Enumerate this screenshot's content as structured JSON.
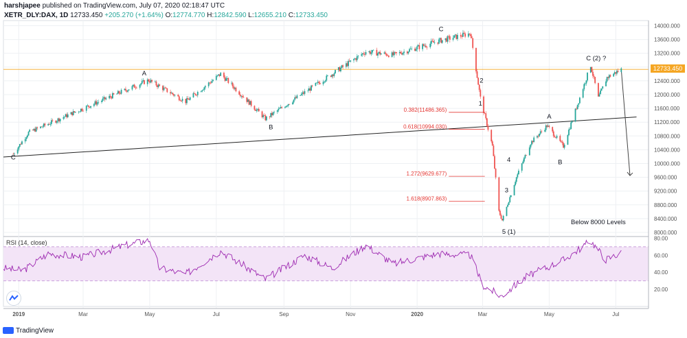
{
  "header": {
    "publisher": "harshjapee",
    "published_text": "published on TradingView.com, July 07, 2020 02:18:47 UTC",
    "symbol": "XETR_DLY:DAX, 1D",
    "last": "12733.450",
    "change": "+205.270 (+1.64%)",
    "o_label": "O:",
    "o": "12774.770",
    "h_label": "H:",
    "h": "12842.590",
    "l_label": "L:",
    "l": "12655.210",
    "c_label": "C:",
    "c": "12733.450"
  },
  "price_tag": "12733.450",
  "footer": {
    "brand": "TradingView",
    "logo_icon": "tradingview-logo-icon",
    "badge_icon": "tradingview-badge-icon"
  },
  "colors": {
    "up": "#26a69a",
    "down": "#ef5350",
    "rsi": "#9c27b0",
    "rsi_band": "#f3e4f7",
    "price_line": "#f5a623",
    "fib": "#e53935"
  },
  "chart_data": [
    {
      "type": "candlestick",
      "y_axis": {
        "ticks": [
          "14000.000",
          "13600.000",
          "13200.000",
          "12800.000",
          "12400.000",
          "12000.000",
          "11600.000",
          "11200.000",
          "10800.000",
          "10400.000",
          "10000.000",
          "9600.000",
          "9200.000",
          "8800.000",
          "8400.000",
          "8000.000"
        ],
        "ylim": [
          7900,
          14150
        ]
      },
      "x_axis": {
        "ticks": [
          "2019",
          "Mar",
          "May",
          "Jul",
          "Sep",
          "Nov",
          "2020",
          "Mar",
          "May",
          "Jul"
        ]
      },
      "grid": true,
      "current_price": 12733.45,
      "key_points": [
        {
          "date": "2018-12-27",
          "price": 10280
        },
        {
          "date": "2019-01-10",
          "price": 10900
        },
        {
          "date": "2019-03-01",
          "price": 11600
        },
        {
          "date": "2019-04-30",
          "price": 12420
        },
        {
          "date": "2019-06-03",
          "price": 11800
        },
        {
          "date": "2019-07-05",
          "price": 12600
        },
        {
          "date": "2019-08-15",
          "price": 11300
        },
        {
          "date": "2019-10-01",
          "price": 12300
        },
        {
          "date": "2019-11-15",
          "price": 13250
        },
        {
          "date": "2019-12-10",
          "price": 13150
        },
        {
          "date": "2020-01-20",
          "price": 13550
        },
        {
          "date": "2020-02-19",
          "price": 13780
        },
        {
          "date": "2020-02-28",
          "price": 11900
        },
        {
          "date": "2020-03-10",
          "price": 10500
        },
        {
          "date": "2020-03-16",
          "price": 8600
        },
        {
          "date": "2020-03-19",
          "price": 8350
        },
        {
          "date": "2020-04-01",
          "price": 9600
        },
        {
          "date": "2020-04-14",
          "price": 10600
        },
        {
          "date": "2020-04-29",
          "price": 11100
        },
        {
          "date": "2020-05-14",
          "price": 10500
        },
        {
          "date": "2020-06-08",
          "price": 12850
        },
        {
          "date": "2020-06-15",
          "price": 11900
        },
        {
          "date": "2020-06-23",
          "price": 12500
        },
        {
          "date": "2020-07-06",
          "price": 12733
        }
      ],
      "trendline": [
        {
          "date": "2018-12-18",
          "price": 10190
        },
        {
          "date": "2020-07-20",
          "price": 11350
        }
      ],
      "projection": [
        {
          "date": "2020-07-06",
          "price": 12733
        },
        {
          "date": "2020-07-14",
          "price": 9650
        }
      ],
      "fib_levels": [
        {
          "label": "0.382(11486.365)",
          "price": 11486.365
        },
        {
          "label": "0.618(10994.030)",
          "price": 10994.03
        },
        {
          "label": "1.272(9629.677)",
          "price": 9629.677
        },
        {
          "label": "1.618(8907.863)",
          "price": 8907.863
        }
      ],
      "wave_labels": [
        {
          "text": "C",
          "date": "2018-12-27",
          "price": 10120
        },
        {
          "text": "A",
          "date": "2019-04-26",
          "price": 12560
        },
        {
          "text": "B",
          "date": "2019-08-20",
          "price": 11000
        },
        {
          "text": "C",
          "date": "2020-01-23",
          "price": 13840
        },
        {
          "text": "2",
          "date": "2020-02-29",
          "price": 12350
        },
        {
          "text": "1",
          "date": "2020-02-28",
          "price": 11680
        },
        {
          "text": "4",
          "date": "2020-03-25",
          "price": 10050
        },
        {
          "text": "3",
          "date": "2020-03-23",
          "price": 9160
        },
        {
          "text": "5 (1)",
          "date": "2020-03-25",
          "price": 7960
        },
        {
          "text": "A",
          "date": "2020-05-01",
          "price": 11300
        },
        {
          "text": "B",
          "date": "2020-05-11",
          "price": 9980
        },
        {
          "text": "C (2) ?",
          "date": "2020-06-13",
          "price": 13000
        }
      ],
      "annotations": [
        {
          "text": "Below 8000 Levels",
          "date": "2020-06-15",
          "price": 8240
        }
      ]
    },
    {
      "type": "line",
      "title": "RSI (14, close)",
      "y_axis": {
        "ticks": [
          "80.00",
          "60.00",
          "40.00",
          "20.00"
        ],
        "ylim": [
          0,
          82
        ]
      },
      "bands": [
        30,
        70
      ],
      "key_points": [
        {
          "date": "2018-12-18",
          "value": 45
        },
        {
          "date": "2019-01-05",
          "value": 42
        },
        {
          "date": "2019-01-28",
          "value": 62
        },
        {
          "date": "2019-03-01",
          "value": 58
        },
        {
          "date": "2019-04-10",
          "value": 72
        },
        {
          "date": "2019-05-01",
          "value": 78
        },
        {
          "date": "2019-05-10",
          "value": 45
        },
        {
          "date": "2019-06-03",
          "value": 38
        },
        {
          "date": "2019-07-05",
          "value": 65
        },
        {
          "date": "2019-08-15",
          "value": 32
        },
        {
          "date": "2019-09-20",
          "value": 60
        },
        {
          "date": "2019-10-15",
          "value": 45
        },
        {
          "date": "2019-11-15",
          "value": 72
        },
        {
          "date": "2019-12-10",
          "value": 50
        },
        {
          "date": "2020-01-20",
          "value": 62
        },
        {
          "date": "2020-02-19",
          "value": 60
        },
        {
          "date": "2020-03-01",
          "value": 25
        },
        {
          "date": "2020-03-18",
          "value": 12
        },
        {
          "date": "2020-04-10",
          "value": 35
        },
        {
          "date": "2020-05-15",
          "value": 55
        },
        {
          "date": "2020-06-08",
          "value": 77
        },
        {
          "date": "2020-06-22",
          "value": 55
        },
        {
          "date": "2020-07-06",
          "value": 63
        }
      ]
    }
  ]
}
